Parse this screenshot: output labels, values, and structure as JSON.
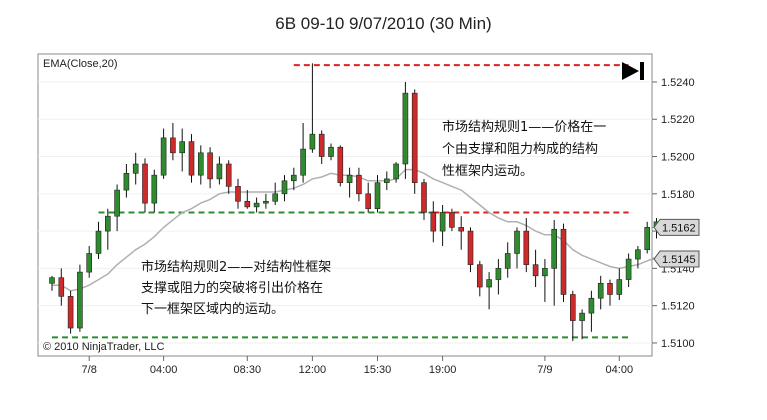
{
  "title": "6B 09-10  9/07/2010 (30 Min)",
  "indicator_label": "EMA(Close,20)",
  "copyright": "© 2010 NinjaTrader, LLC",
  "end_marker_icon": "jump-to-end-icon",
  "annotations": {
    "rule1": [
      "市场结构规则1——价格在一",
      "个由支撑和阻力构成的结构",
      "性框架内运动。"
    ],
    "rule2": [
      "市场结构规则2——对结构性框架",
      "支撑或阻力的突破将引出价格在",
      "下一框架区域内的运动。"
    ]
  },
  "colors": {
    "up": "#2e8b2e",
    "down": "#cc2b2b",
    "ema": "#b0b0b0",
    "support": "#2e8b2e",
    "resistance": "#dd2222"
  },
  "chart_data": {
    "type": "candlestick",
    "ylim": [
      1.5093,
      1.5255
    ],
    "y_ticks": [
      "1.5100",
      "1.5120",
      "1.5140",
      "1.5160",
      "1.5180",
      "1.5200",
      "1.5220",
      "1.5240"
    ],
    "x_ticks": [
      {
        "label": "7/8",
        "index": 4
      },
      {
        "label": "04:00",
        "index": 12
      },
      {
        "label": "08:30",
        "index": 21
      },
      {
        "label": "12:00",
        "index": 28
      },
      {
        "label": "15:30",
        "index": 35
      },
      {
        "label": "19:00",
        "index": 42
      },
      {
        "label": "7/9",
        "index": 53
      },
      {
        "label": "04:00",
        "index": 61
      }
    ],
    "price_badges": [
      "1.5162",
      "1.5145"
    ],
    "levels": {
      "resistance_top": {
        "value": 1.5249
      },
      "mid_level": {
        "value": 1.517
      },
      "bottom_support": {
        "value": 1.5103
      }
    },
    "candles": [
      [
        1.5132,
        1.5136,
        1.5128,
        1.5135
      ],
      [
        1.5135,
        1.514,
        1.512,
        1.5125
      ],
      [
        1.5125,
        1.5128,
        1.5105,
        1.5108
      ],
      [
        1.5108,
        1.5142,
        1.5106,
        1.5138
      ],
      [
        1.5138,
        1.5152,
        1.5135,
        1.5148
      ],
      [
        1.5148,
        1.5165,
        1.5145,
        1.516
      ],
      [
        1.516,
        1.5172,
        1.515,
        1.5168
      ],
      [
        1.5168,
        1.5185,
        1.516,
        1.5182
      ],
      [
        1.5182,
        1.5196,
        1.5178,
        1.5191
      ],
      [
        1.5191,
        1.5202,
        1.5185,
        1.5196
      ],
      [
        1.5196,
        1.5199,
        1.517,
        1.5175
      ],
      [
        1.5175,
        1.5193,
        1.517,
        1.519
      ],
      [
        1.519,
        1.5215,
        1.5188,
        1.521
      ],
      [
        1.521,
        1.5218,
        1.5198,
        1.5202
      ],
      [
        1.5202,
        1.5215,
        1.5192,
        1.5208
      ],
      [
        1.5208,
        1.5212,
        1.5186,
        1.519
      ],
      [
        1.519,
        1.5206,
        1.5185,
        1.5202
      ],
      [
        1.5202,
        1.5205,
        1.5183,
        1.5188
      ],
      [
        1.5188,
        1.52,
        1.5185,
        1.5196
      ],
      [
        1.5196,
        1.5198,
        1.518,
        1.5184
      ],
      [
        1.5184,
        1.5188,
        1.5172,
        1.5176
      ],
      [
        1.5176,
        1.5182,
        1.5172,
        1.5173
      ],
      [
        1.5173,
        1.5178,
        1.517,
        1.5175
      ],
      [
        1.5175,
        1.518,
        1.5172,
        1.5176
      ],
      [
        1.5176,
        1.5186,
        1.5174,
        1.518
      ],
      [
        1.518,
        1.519,
        1.5176,
        1.5187
      ],
      [
        1.5187,
        1.5194,
        1.5182,
        1.519
      ],
      [
        1.519,
        1.5218,
        1.5186,
        1.5204
      ],
      [
        1.5204,
        1.525,
        1.5202,
        1.5212
      ],
      [
        1.5212,
        1.5214,
        1.5196,
        1.52
      ],
      [
        1.52,
        1.5207,
        1.5198,
        1.5205
      ],
      [
        1.5205,
        1.5206,
        1.5184,
        1.5186
      ],
      [
        1.5186,
        1.5194,
        1.5178,
        1.519
      ],
      [
        1.519,
        1.5194,
        1.5176,
        1.518
      ],
      [
        1.518,
        1.5186,
        1.517,
        1.5172
      ],
      [
        1.5172,
        1.519,
        1.517,
        1.5186
      ],
      [
        1.5186,
        1.5192,
        1.5182,
        1.5188
      ],
      [
        1.5188,
        1.5197,
        1.5186,
        1.5196
      ],
      [
        1.5196,
        1.524,
        1.5188,
        1.5234
      ],
      [
        1.5234,
        1.5236,
        1.518,
        1.5186
      ],
      [
        1.5186,
        1.5188,
        1.5166,
        1.517
      ],
      [
        1.517,
        1.5176,
        1.5154,
        1.516
      ],
      [
        1.516,
        1.5174,
        1.5152,
        1.517
      ],
      [
        1.517,
        1.5172,
        1.516,
        1.5162
      ],
      [
        1.5162,
        1.5168,
        1.515,
        1.516
      ],
      [
        1.516,
        1.5162,
        1.5138,
        1.5142
      ],
      [
        1.5142,
        1.5144,
        1.5125,
        1.513
      ],
      [
        1.513,
        1.5138,
        1.5118,
        1.5134
      ],
      [
        1.5134,
        1.5145,
        1.5126,
        1.514
      ],
      [
        1.514,
        1.5154,
        1.5135,
        1.5148
      ],
      [
        1.5148,
        1.5162,
        1.514,
        1.516
      ],
      [
        1.516,
        1.5167,
        1.5138,
        1.5142
      ],
      [
        1.5142,
        1.515,
        1.513,
        1.5136
      ],
      [
        1.5136,
        1.5145,
        1.5122,
        1.514
      ],
      [
        1.514,
        1.5166,
        1.512,
        1.5161
      ],
      [
        1.5161,
        1.5164,
        1.5122,
        1.5126
      ],
      [
        1.5126,
        1.5128,
        1.5101,
        1.5112
      ],
      [
        1.5112,
        1.5118,
        1.5102,
        1.5116
      ],
      [
        1.5116,
        1.5128,
        1.5106,
        1.5124
      ],
      [
        1.5124,
        1.5136,
        1.5118,
        1.5132
      ],
      [
        1.5132,
        1.5134,
        1.512,
        1.5126
      ],
      [
        1.5126,
        1.514,
        1.5123,
        1.5134
      ],
      [
        1.5134,
        1.5148,
        1.513,
        1.5145
      ],
      [
        1.5145,
        1.5152,
        1.514,
        1.515
      ],
      [
        1.515,
        1.5165,
        1.5148,
        1.5162
      ],
      [
        1.5162,
        1.5167,
        1.5156,
        1.5165
      ]
    ],
    "ema": [
      1.5131,
      1.5131,
      1.5128,
      1.5129,
      1.5131,
      1.5134,
      1.5137,
      1.5142,
      1.5146,
      1.515,
      1.5153,
      1.5157,
      1.5162,
      1.5166,
      1.517,
      1.5172,
      1.5175,
      1.5177,
      1.518,
      1.5181,
      1.5181,
      1.5181,
      1.5181,
      1.5181,
      1.5181,
      1.5182,
      1.5183,
      1.5185,
      1.5188,
      1.5189,
      1.5191,
      1.519,
      1.519,
      1.5189,
      1.5187,
      1.5187,
      1.5187,
      1.5188,
      1.5193,
      1.5193,
      1.5191,
      1.5188,
      1.5186,
      1.5184,
      1.5182,
      1.5178,
      1.5174,
      1.517,
      1.5167,
      1.5165,
      1.5165,
      1.5163,
      1.516,
      1.5158,
      1.5158,
      1.5155,
      1.515,
      1.5147,
      1.5145,
      1.5143,
      1.5141,
      1.514,
      1.5141,
      1.5142,
      1.5144,
      1.5146
    ]
  }
}
